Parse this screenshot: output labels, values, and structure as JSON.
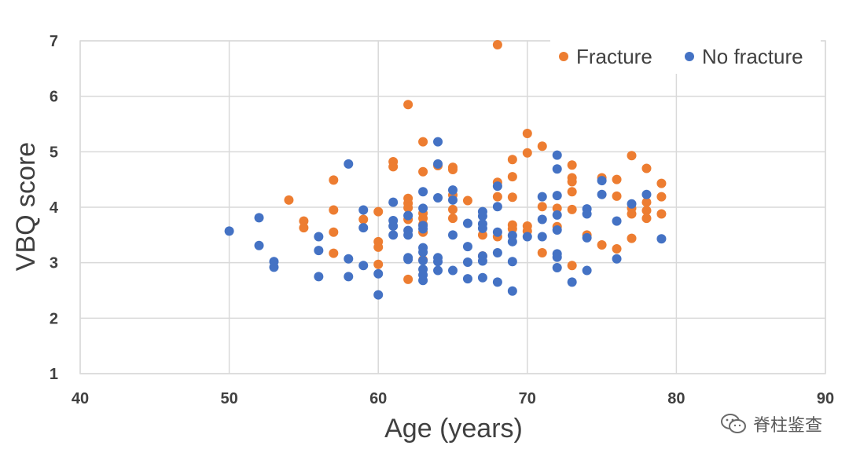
{
  "chart_data": {
    "type": "scatter",
    "title": "",
    "xlabel": "Age (years)",
    "ylabel": "VBQ score",
    "xlim": [
      40,
      90
    ],
    "ylim": [
      1,
      7
    ],
    "x_ticks": [
      "40",
      "50",
      "60",
      "70",
      "80",
      "90"
    ],
    "y_ticks": [
      "1",
      "2",
      "3",
      "4",
      "5",
      "6",
      "7"
    ],
    "grid": true,
    "legend_position": "top-right",
    "series": [
      {
        "name": "Fracture",
        "color": "#ED7D31",
        "points": [
          [
            54,
            4.13
          ],
          [
            55,
            3.75
          ],
          [
            55,
            3.63
          ],
          [
            57,
            4.49
          ],
          [
            57,
            3.95
          ],
          [
            57,
            3.55
          ],
          [
            57,
            3.17
          ],
          [
            59,
            3.78
          ],
          [
            60,
            3.92
          ],
          [
            60,
            3.38
          ],
          [
            60,
            3.28
          ],
          [
            60,
            2.97
          ],
          [
            61,
            4.82
          ],
          [
            61,
            4.73
          ],
          [
            62,
            5.85
          ],
          [
            62,
            4.16
          ],
          [
            62,
            4.07
          ],
          [
            62,
            3.99
          ],
          [
            62,
            3.78
          ],
          [
            62,
            2.7
          ],
          [
            63,
            5.18
          ],
          [
            63,
            4.64
          ],
          [
            63,
            3.89
          ],
          [
            63,
            3.8
          ],
          [
            63,
            3.69
          ],
          [
            63,
            3.55
          ],
          [
            63,
            3.05
          ],
          [
            64,
            4.75
          ],
          [
            65,
            4.72
          ],
          [
            65,
            4.68
          ],
          [
            65,
            4.22
          ],
          [
            65,
            3.96
          ],
          [
            65,
            3.8
          ],
          [
            66,
            4.12
          ],
          [
            67,
            3.5
          ],
          [
            67,
            3.12
          ],
          [
            68,
            6.93
          ],
          [
            68,
            4.45
          ],
          [
            68,
            4.19
          ],
          [
            68,
            3.47
          ],
          [
            69,
            4.86
          ],
          [
            69,
            4.55
          ],
          [
            69,
            4.18
          ],
          [
            69,
            3.68
          ],
          [
            69,
            3.61
          ],
          [
            70,
            5.33
          ],
          [
            70,
            4.98
          ],
          [
            70,
            3.66
          ],
          [
            70,
            3.57
          ],
          [
            71,
            5.1
          ],
          [
            71,
            4.01
          ],
          [
            71,
            3.18
          ],
          [
            72,
            3.98
          ],
          [
            72,
            3.65
          ],
          [
            73,
            4.76
          ],
          [
            73,
            4.53
          ],
          [
            73,
            4.46
          ],
          [
            73,
            4.28
          ],
          [
            73,
            3.96
          ],
          [
            73,
            2.95
          ],
          [
            74,
            3.5
          ],
          [
            75,
            4.53
          ],
          [
            75,
            3.32
          ],
          [
            76,
            4.5
          ],
          [
            76,
            4.2
          ],
          [
            76,
            3.25
          ],
          [
            77,
            4.93
          ],
          [
            77,
            3.98
          ],
          [
            77,
            3.88
          ],
          [
            77,
            3.44
          ],
          [
            78,
            4.7
          ],
          [
            78,
            4.09
          ],
          [
            78,
            3.94
          ],
          [
            78,
            3.8
          ],
          [
            79,
            4.43
          ],
          [
            79,
            4.19
          ],
          [
            79,
            3.88
          ]
        ]
      },
      {
        "name": "No fracture",
        "color": "#4472C4",
        "points": [
          [
            50,
            3.57
          ],
          [
            52,
            3.81
          ],
          [
            52,
            3.31
          ],
          [
            53,
            3.02
          ],
          [
            53,
            2.92
          ],
          [
            56,
            3.47
          ],
          [
            56,
            3.22
          ],
          [
            56,
            2.75
          ],
          [
            58,
            4.78
          ],
          [
            58,
            3.07
          ],
          [
            58,
            2.75
          ],
          [
            59,
            3.95
          ],
          [
            59,
            3.63
          ],
          [
            59,
            2.95
          ],
          [
            60,
            2.8
          ],
          [
            60,
            2.42
          ],
          [
            61,
            4.09
          ],
          [
            61,
            3.76
          ],
          [
            61,
            3.66
          ],
          [
            61,
            3.5
          ],
          [
            62,
            3.85
          ],
          [
            62,
            3.58
          ],
          [
            62,
            3.5
          ],
          [
            62,
            3.09
          ],
          [
            62,
            3.06
          ],
          [
            63,
            4.28
          ],
          [
            63,
            3.98
          ],
          [
            63,
            3.67
          ],
          [
            63,
            3.61
          ],
          [
            63,
            3.27
          ],
          [
            63,
            3.19
          ],
          [
            63,
            3.04
          ],
          [
            63,
            2.88
          ],
          [
            63,
            2.78
          ],
          [
            63,
            2.68
          ],
          [
            64,
            5.18
          ],
          [
            64,
            4.78
          ],
          [
            64,
            4.17
          ],
          [
            64,
            3.09
          ],
          [
            64,
            3.02
          ],
          [
            64,
            2.86
          ],
          [
            65,
            4.31
          ],
          [
            65,
            4.13
          ],
          [
            65,
            3.5
          ],
          [
            65,
            2.86
          ],
          [
            66,
            3.71
          ],
          [
            66,
            3.29
          ],
          [
            66,
            3.01
          ],
          [
            66,
            2.71
          ],
          [
            67,
            3.92
          ],
          [
            67,
            3.84
          ],
          [
            67,
            3.7
          ],
          [
            67,
            3.62
          ],
          [
            67,
            3.12
          ],
          [
            67,
            3.03
          ],
          [
            67,
            2.73
          ],
          [
            68,
            4.38
          ],
          [
            68,
            4.01
          ],
          [
            68,
            3.55
          ],
          [
            68,
            3.18
          ],
          [
            68,
            2.65
          ],
          [
            69,
            3.49
          ],
          [
            69,
            3.38
          ],
          [
            69,
            3.02
          ],
          [
            69,
            2.49
          ],
          [
            70,
            3.47
          ],
          [
            71,
            4.19
          ],
          [
            71,
            3.78
          ],
          [
            71,
            3.47
          ],
          [
            72,
            4.94
          ],
          [
            72,
            4.69
          ],
          [
            72,
            4.21
          ],
          [
            72,
            3.86
          ],
          [
            72,
            3.59
          ],
          [
            72,
            3.16
          ],
          [
            72,
            3.1
          ],
          [
            72,
            2.91
          ],
          [
            73,
            2.65
          ],
          [
            74,
            3.97
          ],
          [
            74,
            3.88
          ],
          [
            74,
            3.45
          ],
          [
            74,
            2.86
          ],
          [
            75,
            4.48
          ],
          [
            75,
            4.23
          ],
          [
            76,
            3.75
          ],
          [
            76,
            3.07
          ],
          [
            77,
            4.06
          ],
          [
            78,
            4.23
          ],
          [
            79,
            3.43
          ]
        ]
      }
    ]
  },
  "watermark": {
    "text": "脊柱鉴查",
    "icon": "wechat-icon"
  }
}
